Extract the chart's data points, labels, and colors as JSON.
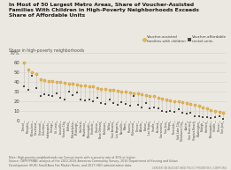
{
  "title": "In Most of 50 Largest Metro Areas, Share of Voucher-Assisted\nFamilies With Children in High-Poverty Neighborhoods Exceeds\nShare of Affordable Units",
  "ylabel": "Share in high-poverty neighborhoods",
  "ylim": [
    0,
    70
  ],
  "yticks": [
    0,
    10,
    20,
    30,
    40,
    50,
    60,
    70
  ],
  "voucher_families": [
    60,
    53,
    50,
    48,
    43,
    42,
    41,
    41,
    40,
    40,
    39,
    38,
    38,
    37,
    36,
    36,
    35,
    35,
    34,
    33,
    33,
    32,
    32,
    31,
    30,
    30,
    29,
    28,
    28,
    27,
    26,
    25,
    25,
    24,
    23,
    22,
    21,
    20,
    20,
    19,
    18,
    17,
    16,
    15,
    14,
    13,
    11,
    10,
    9,
    8
  ],
  "voucher_affordable": [
    35,
    32,
    46,
    34,
    25,
    27,
    26,
    25,
    28,
    24,
    22,
    30,
    26,
    29,
    22,
    21,
    22,
    20,
    24,
    18,
    17,
    22,
    18,
    16,
    19,
    17,
    15,
    25,
    16,
    14,
    18,
    13,
    14,
    13,
    10,
    9,
    10,
    9,
    12,
    8,
    7,
    8,
    5,
    5,
    4,
    4,
    3,
    4,
    5,
    2
  ],
  "family_color": "#E8B84B",
  "affordable_color": "#4a4a4a",
  "line_color": "#C8C8C8",
  "background_color": "#EAE8E0",
  "grid_color": "#D5D3CB",
  "text_color": "#333333",
  "note_text": "Note: High-poverty neighborhoods are Census tracts with a poverty rate of 30% or higher.\nSource: CBPP/PRRAC analysis of the 2012-2016 American Community Survey, 2016 Department of Housing and Urban\nDevelopment (HUD) Small Area Fair Market Rents, and 2017 HUD administrative data.",
  "footer_text": "CENTER ON BUDGET AND POLICY PRIORITIES | CBPP.ORG",
  "legend_label1": "Voucher-assisted\nfamilies with children",
  "legend_label2": "Voucher-affordable\nrental units"
}
